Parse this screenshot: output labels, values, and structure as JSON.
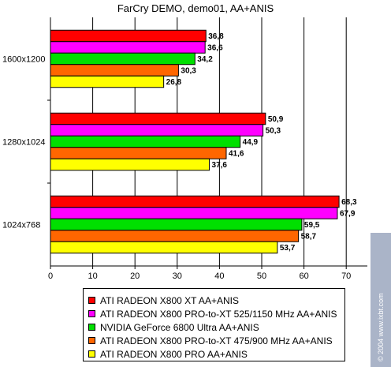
{
  "chart_data": {
    "type": "bar",
    "orientation": "horizontal",
    "title": "FarCry DEMO, demo01, AA+ANIS",
    "categories": [
      "1600x1200",
      "1280x1024",
      "1024x768"
    ],
    "series": [
      {
        "name": "ATI RADEON X800 XT AA+ANIS",
        "color": "#ff0000",
        "values": [
          36.8,
          50.9,
          68.3
        ],
        "labels": [
          "36,8",
          "50,9",
          "68,3"
        ]
      },
      {
        "name": "ATI RADEON X800 PRO-to-XT 525/1150 MHz AA+ANIS",
        "color": "#ff00ff",
        "values": [
          36.6,
          50.3,
          67.9
        ],
        "labels": [
          "36,6",
          "50,3",
          "67,9"
        ]
      },
      {
        "name": "NVIDIA GeForce 6800 Ultra AA+ANIS",
        "color": "#00e000",
        "values": [
          34.2,
          44.9,
          59.5
        ],
        "labels": [
          "34,2",
          "44,9",
          "59,5"
        ]
      },
      {
        "name": "ATI RADEON X800 PRO-to-XT 475/900 MHz AA+ANIS",
        "color": "#ff6600",
        "values": [
          30.3,
          41.6,
          58.7
        ],
        "labels": [
          "30,3",
          "41,6",
          "58,7"
        ]
      },
      {
        "name": "ATI RADEON X800 PRO AA+ANIS",
        "color": "#ffff00",
        "values": [
          26.8,
          37.6,
          53.7
        ],
        "labels": [
          "26,8",
          "37,6",
          "53,7"
        ]
      }
    ],
    "xlim": [
      0,
      75
    ],
    "xticks": [
      0,
      10,
      20,
      30,
      40,
      50,
      60,
      70
    ],
    "grid": true,
    "legend_position": "bottom"
  },
  "watermark": "© 2004 www.ixbt.com"
}
